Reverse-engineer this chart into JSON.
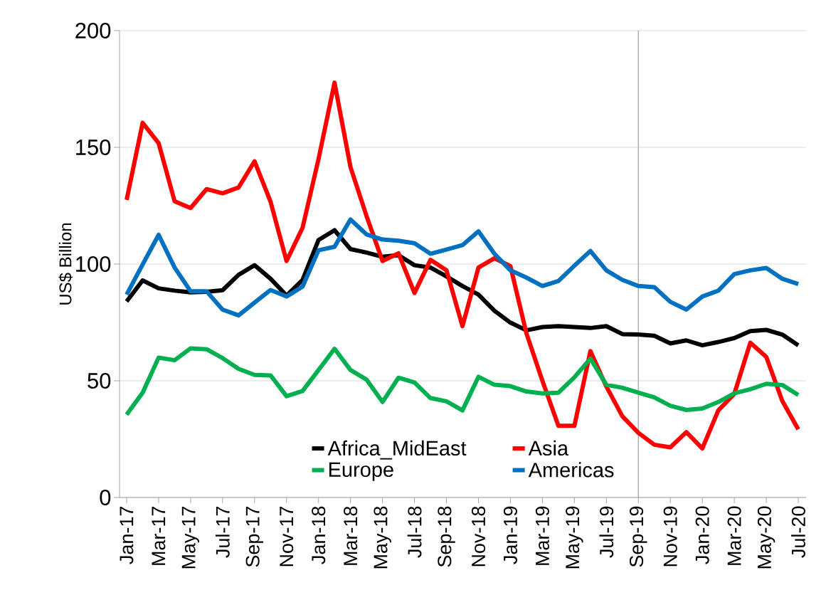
{
  "chart_data": {
    "type": "line",
    "ylabel": "US$ Billion",
    "categories": [
      "Jan-17",
      null,
      "Mar-17",
      null,
      "May-17",
      null,
      "Jul-17",
      null,
      "Sep-17",
      null,
      "Nov-17",
      null,
      "Jan-18",
      null,
      "Mar-18",
      null,
      "May-18",
      null,
      "Jul-18",
      null,
      "Sep-18",
      null,
      "Nov-18",
      null,
      "Jan-19",
      null,
      "Mar-19",
      null,
      "May-19",
      null,
      "Jul-19",
      null,
      "Sep-19",
      null,
      "Nov-19",
      null,
      "Jan-20",
      null,
      "Mar-20",
      null,
      "May-20",
      null,
      "Jul-20"
    ],
    "series": [
      {
        "name": "Africa_MidEast",
        "color": "#000000",
        "values": [
          84,
          93,
          89.6,
          88.6,
          87.9,
          88.1,
          88.8,
          95.4,
          99.5,
          93.7,
          86.5,
          93.2,
          110.3,
          114.5,
          106.4,
          104.9,
          103.1,
          103.8,
          99.5,
          98.5,
          94.7,
          90.6,
          86.9,
          80,
          74.9,
          71.6,
          73,
          73.4,
          73,
          72.6,
          73.4,
          70,
          69.8,
          69.3,
          66,
          67.3,
          65.2,
          66.6,
          68.3,
          71.3,
          71.8,
          69.8,
          65.2
        ]
      },
      {
        "name": "Asia",
        "color": "#ff0000",
        "values": [
          127.5,
          160.5,
          151.8,
          126.9,
          124,
          132.1,
          130.3,
          132.8,
          144,
          126.7,
          101.3,
          115.5,
          145,
          177.7,
          141.5,
          120.6,
          101.3,
          104.6,
          87.6,
          101.8,
          97.3,
          73.4,
          98.5,
          102.5,
          99.1,
          70.3,
          50,
          30.7,
          30.7,
          62.7,
          47.5,
          34.8,
          27.7,
          22.6,
          21.5,
          28,
          21,
          37.3,
          44.4,
          66.3,
          60.2,
          41.4,
          29.2
        ]
      },
      {
        "name": "Europe",
        "color": "#00b050",
        "values": [
          35.5,
          44.9,
          59.9,
          58.8,
          63.9,
          63.5,
          59.7,
          55.1,
          52.5,
          52.3,
          43.4,
          45.6,
          54.6,
          63.7,
          54.6,
          50.5,
          40.9,
          51.3,
          49.3,
          42.6,
          41.2,
          37.3,
          51.7,
          48.3,
          47.7,
          45.4,
          44.6,
          44.9,
          51.5,
          59.5,
          48.3,
          47,
          44.9,
          42.9,
          39.3,
          37.5,
          38.1,
          40.9,
          44.6,
          46.4,
          48.7,
          48.2,
          43.9
        ]
      },
      {
        "name": "Americas",
        "color": "#0070c0",
        "values": [
          86.9,
          99.8,
          112.5,
          98.5,
          88.3,
          88.3,
          80.5,
          78,
          83.5,
          88.9,
          86.1,
          90.3,
          105.9,
          107.4,
          119.1,
          112.7,
          110.5,
          110,
          108.9,
          104.4,
          106.2,
          108.1,
          114,
          104.4,
          97.3,
          94.2,
          90.6,
          92.7,
          99.3,
          105.6,
          97.3,
          93.2,
          90.6,
          90.1,
          83.8,
          80.5,
          86.1,
          88.6,
          95.7,
          97.3,
          98.3,
          93.7,
          91.4
        ]
      }
    ],
    "ylim": [
      0,
      200
    ],
    "yticks": [
      0,
      50,
      100,
      150,
      200
    ],
    "grid": "y",
    "legend": "bottom",
    "marker": "none",
    "line_style": "solid",
    "ref_lines": [
      {
        "axis": "x",
        "value": "Sep-19",
        "color": "#a6a6a6"
      }
    ]
  }
}
